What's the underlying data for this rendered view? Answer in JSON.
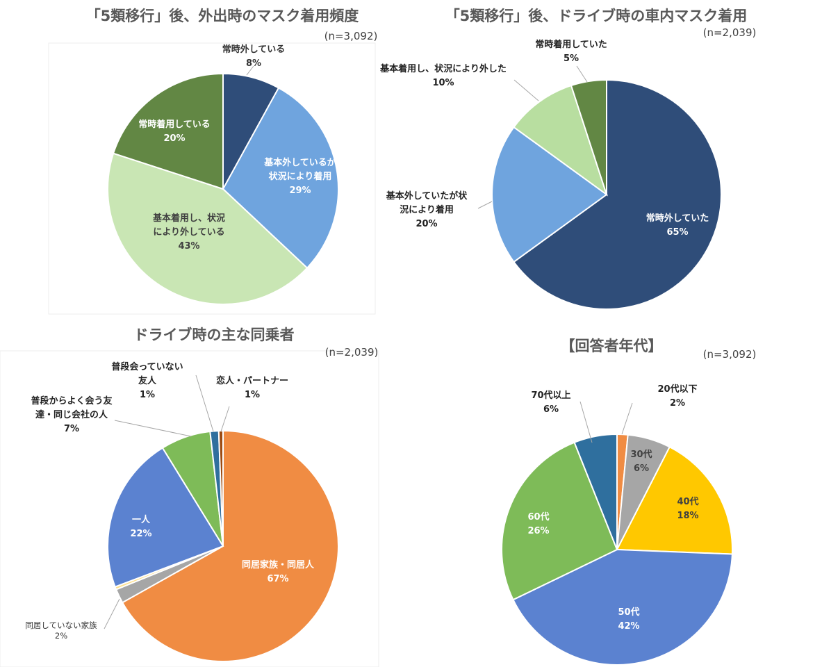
{
  "chart_data": [
    {
      "type": "pie",
      "title": "「5類移行」後、外出時のマスク着用頻度",
      "n_label": "(n=3,092)",
      "slices": [
        {
          "label": "常時外している",
          "percent_label": "8%",
          "value": 8,
          "color": "#2f4d79"
        },
        {
          "label": "基本外しているが状況により着用",
          "percent_label": "29%",
          "value": 29,
          "color": "#6fa4de"
        },
        {
          "label": "基本着用し、状況により外している",
          "percent_label": "43%",
          "value": 43,
          "color": "#c9e6b4"
        },
        {
          "label": "常時着用している",
          "percent_label": "20%",
          "value": 20,
          "color": "#628744"
        }
      ]
    },
    {
      "type": "pie",
      "title": "「5類移行」後、ドライブ時の車内マスク着用",
      "n_label": "(n=2,039)",
      "slices": [
        {
          "label": "常時外していた",
          "percent_label": "65%",
          "value": 65,
          "color": "#2f4d79"
        },
        {
          "label": "基本外していたが状況により着用",
          "percent_label": "20%",
          "value": 20,
          "color": "#6fa4de"
        },
        {
          "label": "基本着用し、状況により外した",
          "percent_label": "10%",
          "value": 10,
          "color": "#b8dea0"
        },
        {
          "label": "常時着用していた",
          "percent_label": "5%",
          "value": 5,
          "color": "#628744"
        }
      ]
    },
    {
      "type": "pie",
      "title": "ドライブ時の主な同乗者",
      "n_label": "(n=2,039)",
      "slices": [
        {
          "label": "同居家族・同居人",
          "percent_label": "67%",
          "value": 67,
          "color": "#f08c43"
        },
        {
          "label": "同居していない家族",
          "percent_label": "2%",
          "value": 2,
          "color": "#a6a6a6"
        },
        {
          "label": "",
          "percent_label": "",
          "value": 0.4,
          "color": "#ffe08a"
        },
        {
          "label": "一人",
          "percent_label": "22%",
          "value": 22,
          "color": "#5b82d0"
        },
        {
          "label": "普段からよく会う友達・同じ会社の人",
          "percent_label": "7%",
          "value": 7,
          "color": "#7ebb58"
        },
        {
          "label": "普段会っていない友人",
          "percent_label": "1%",
          "value": 1.2,
          "color": "#2f6f9e"
        },
        {
          "label": "恋人・パートナー",
          "percent_label": "1%",
          "value": 0.6,
          "color": "#9c4b12"
        }
      ]
    },
    {
      "type": "pie",
      "title": "【回答者年代】",
      "n_label": "(n=3,092)",
      "slices": [
        {
          "label": "20代以下",
          "percent_label": "2%",
          "value": 1.5,
          "color": "#f08c43"
        },
        {
          "label": "30代",
          "percent_label": "6%",
          "value": 6,
          "color": "#a6a6a6"
        },
        {
          "label": "40代",
          "percent_label": "18%",
          "value": 18,
          "color": "#ffc800"
        },
        {
          "label": "50代",
          "percent_label": "42%",
          "value": 42,
          "color": "#5b82d0"
        },
        {
          "label": "60代",
          "percent_label": "26%",
          "value": 26,
          "color": "#7ebb58"
        },
        {
          "label": "70代以上",
          "percent_label": "6%",
          "value": 6,
          "color": "#2f6f9e"
        }
      ]
    }
  ]
}
